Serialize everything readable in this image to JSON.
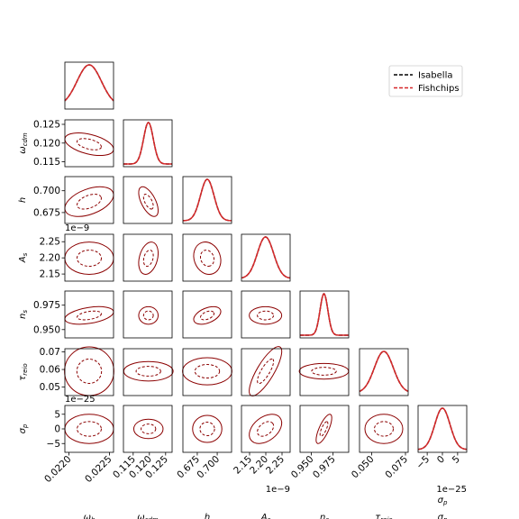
{
  "chart_data": {
    "type": "corner",
    "parameters": [
      {
        "id": "omega_b",
        "label": "ω_b",
        "center": 0.02225,
        "sigma": 0.00015
      },
      {
        "id": "omega_cdm",
        "label": "ω_cdm",
        "center": 0.1197,
        "sigma": 0.0015
      },
      {
        "id": "h",
        "label": "h",
        "center": 0.6875,
        "sigma": 0.0085
      },
      {
        "id": "A_s",
        "label": "A_s",
        "center": 2.199,
        "sigma": 0.025
      },
      {
        "id": "n_s",
        "label": "n_s",
        "center": 0.9645,
        "sigma": 0.0045
      },
      {
        "id": "tau_reio",
        "label": "τ_reio",
        "center": 0.059,
        "sigma": 0.007
      },
      {
        "id": "sigma_p",
        "label": "σ_p",
        "center": 0.0,
        "sigma": 2.5
      }
    ],
    "x_ranges": [
      [
        0.02195,
        0.02255
      ],
      [
        0.112,
        0.127
      ],
      [
        0.657,
        0.718
      ],
      [
        2.125,
        2.275
      ],
      [
        0.937,
        0.993
      ],
      [
        0.041,
        0.077
      ],
      [
        -8.0,
        8.0
      ]
    ],
    "x_ticks": [
      [
        0.022,
        0.0225
      ],
      [
        0.115,
        0.12,
        0.125
      ],
      [
        0.675,
        0.7
      ],
      [
        2.15,
        2.2,
        2.25
      ],
      [
        0.95,
        0.975
      ],
      [
        0.05,
        0.075
      ],
      [
        -5,
        0,
        5
      ]
    ],
    "x_tick_labels": [
      [
        "0.0220",
        "0.0225"
      ],
      [
        "0.115",
        "0.120",
        "0.125"
      ],
      [
        "0.675",
        "0.700"
      ],
      [
        "2.15",
        "2.20",
        "2.25"
      ],
      [
        "0.950",
        "0.975"
      ],
      [
        "0.050",
        "0.075"
      ],
      [
        "−5",
        "0",
        "5"
      ]
    ],
    "y_ranges": [
      null,
      [
        0.1137,
        0.1262
      ],
      [
        0.6625,
        0.7162
      ],
      [
        2.128,
        2.273
      ],
      [
        0.9415,
        0.9895
      ],
      [
        0.0452,
        0.0718
      ],
      [
        -8.0,
        8.0
      ]
    ],
    "y_ticks": [
      null,
      [
        0.115,
        0.12,
        0.125
      ],
      [
        0.675,
        0.7
      ],
      [
        2.15,
        2.2,
        2.25
      ],
      [
        0.95,
        0.975
      ],
      [
        0.05,
        0.06,
        0.07
      ],
      [
        -5,
        0,
        5
      ]
    ],
    "y_tick_labels": [
      null,
      [
        "0.115",
        "0.120",
        "0.125"
      ],
      [
        "0.675",
        "0.700"
      ],
      [
        "2.15",
        "2.20",
        "2.25"
      ],
      [
        "0.950",
        "0.975"
      ],
      [
        "0.05",
        "0.06",
        "0.07"
      ],
      [
        "−5",
        "0",
        "5"
      ]
    ],
    "correlations": [
      [
        1.0,
        -0.45,
        0.45,
        0.0,
        0.4,
        0.0,
        0.0
      ],
      [
        -0.45,
        1.0,
        -0.6,
        0.3,
        0.0,
        0.0,
        0.0
      ],
      [
        0.45,
        -0.6,
        1.0,
        -0.15,
        0.45,
        0.0,
        0.0
      ],
      [
        0.0,
        0.3,
        -0.15,
        1.0,
        0.0,
        0.8,
        0.4
      ],
      [
        0.4,
        0.0,
        0.45,
        0.0,
        1.0,
        0.0,
        0.75
      ],
      [
        0.0,
        0.0,
        0.0,
        0.8,
        0.0,
        1.0,
        0.0
      ],
      [
        0.0,
        0.0,
        0.0,
        0.4,
        0.75,
        0.0,
        1.0
      ]
    ],
    "contour_levels": {
      "inner": 1.0,
      "outer": 2.0
    },
    "offset_texts": {
      "y": {
        "A_s": "1e−9",
        "sigma_p": "1e−25"
      },
      "x": {
        "A_s": "1e−9",
        "sigma_p": "1e−25"
      }
    },
    "series": [
      {
        "name": "Isabella",
        "color": "#000000",
        "style": "dashed"
      },
      {
        "name": "Fishchips",
        "color": "#d62728",
        "style": "dashed"
      }
    ],
    "contour_color": "#8b0000",
    "legend_position": "top-right"
  }
}
